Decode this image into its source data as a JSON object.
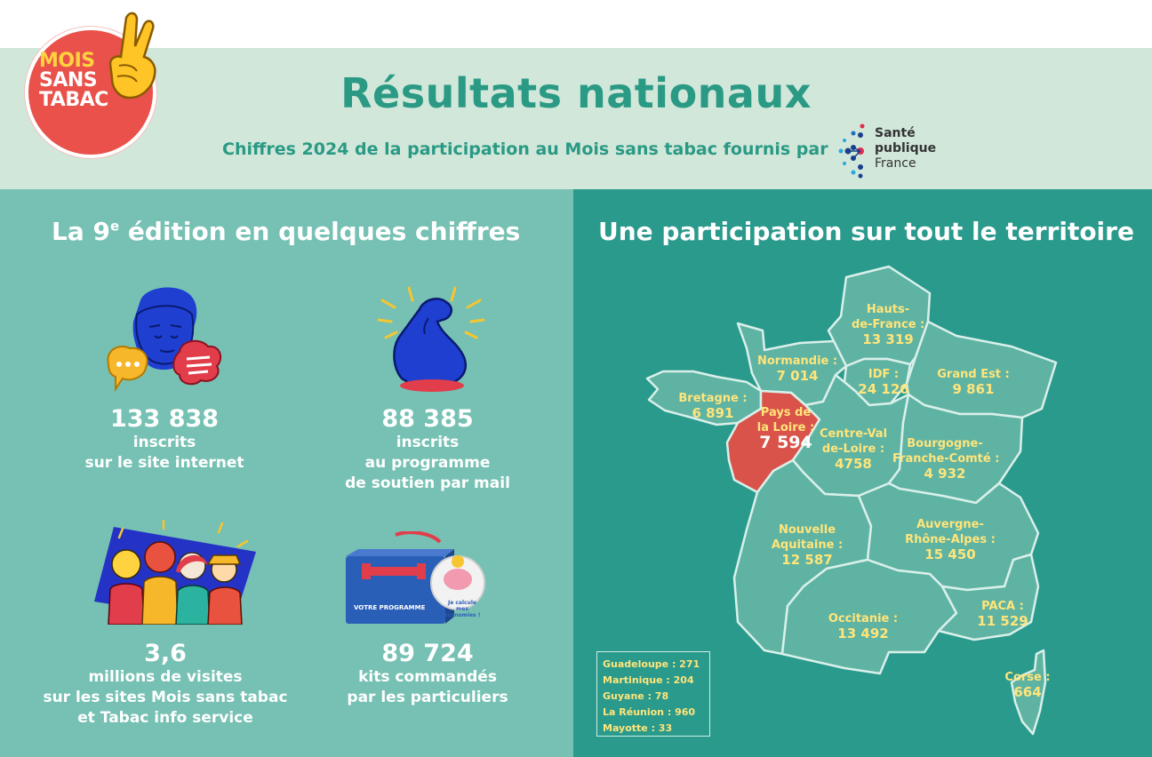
{
  "logo": {
    "line1": "MOIS",
    "line2": "SANS",
    "line3": "TABAC"
  },
  "header": {
    "title": "Résultats nationaux",
    "subtitle": "Chiffres 2024 de la participation au Mois sans tabac fournis par",
    "partner": {
      "line1": "Santé",
      "line2": "publique",
      "line3": "France"
    }
  },
  "left": {
    "title": "La 9e édition en quelques chiffres",
    "stats": [
      {
        "value": "133 838",
        "lines": [
          "inscrits",
          "sur le site internet"
        ]
      },
      {
        "value": "88 385",
        "lines": [
          "inscrits",
          "au programme",
          "de soutien par mail"
        ]
      },
      {
        "value": "3,6",
        "lines": [
          "millions de visites",
          "sur les sites Mois sans tabac",
          "et Tabac info service"
        ]
      },
      {
        "value": "89 724",
        "lines": [
          "kits commandés",
          "par les particuliers"
        ]
      }
    ],
    "kit": {
      "caption": "VOTRE PROGRAMME",
      "badge_line1": "Je calcule",
      "badge_line2": "mes économies !"
    }
  },
  "right": {
    "title": "Une participation sur tout le territoire",
    "regions": [
      {
        "id": "hauts-de-france",
        "lines": [
          "Hauts-",
          "de-France :"
        ],
        "value": "13 319"
      },
      {
        "id": "normandie",
        "lines": [
          "Normandie :"
        ],
        "value": "7 014"
      },
      {
        "id": "idf",
        "lines": [
          "IDF :"
        ],
        "value": "24 126"
      },
      {
        "id": "grand-est",
        "lines": [
          "Grand Est :"
        ],
        "value": "9 861"
      },
      {
        "id": "bretagne",
        "lines": [
          "Bretagne :"
        ],
        "value": "6 891"
      },
      {
        "id": "pays-de-la-loire",
        "lines": [
          "Pays de",
          "la Loire :"
        ],
        "value": "7 594"
      },
      {
        "id": "centre-val-de-loire",
        "lines": [
          "Centre-Val",
          "de-Loire :"
        ],
        "value": "4758"
      },
      {
        "id": "bourgogne-franche-comte",
        "lines": [
          "Bourgogne-",
          "Franche-Comté :"
        ],
        "value": "4 932"
      },
      {
        "id": "nouvelle-aquitaine",
        "lines": [
          "Nouvelle",
          "Aquitaine :"
        ],
        "value": "12 587"
      },
      {
        "id": "auvergne-rhone-alpes",
        "lines": [
          "Auvergne-",
          "Rhône-Alpes :"
        ],
        "value": "15 450"
      },
      {
        "id": "occitanie",
        "lines": [
          "Occitanie :"
        ],
        "value": "13 492"
      },
      {
        "id": "paca",
        "lines": [
          "PACA :"
        ],
        "value": "11 529"
      },
      {
        "id": "corse",
        "lines": [
          "Corse :"
        ],
        "value": "664"
      }
    ],
    "highlight": "pays-de-la-loire",
    "overseas": [
      "Guadeloupe : 271",
      "Martinique : 204",
      "Guyane : 78",
      "La Réunion : 960",
      "Mayotte : 33"
    ]
  },
  "colors": {
    "accent": "#2a9a84",
    "header_bg": "#d1e7da",
    "left_bg": "#76c1b3",
    "right_bg": "#2a9a8c",
    "region_fill": "#5fb3a3",
    "highlight_fill": "#d9534a",
    "label_yellow": "#ffe57a",
    "logo_red": "#e9514a"
  }
}
